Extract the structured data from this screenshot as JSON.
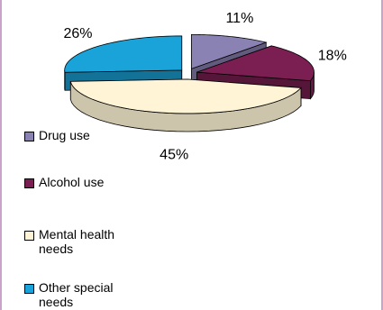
{
  "chart_data": {
    "type": "pie",
    "categories": [
      "Drug use",
      "Alcohol use",
      "Mental health needs",
      "Other special needs"
    ],
    "values": [
      11,
      18,
      45,
      26
    ],
    "value_labels": [
      "11%",
      "18%",
      "45%",
      "26%"
    ],
    "title": "",
    "legend_placement": "bottom-left",
    "colors": {
      "Drug use": "#8b82b4",
      "Alcohol use": "#7b1f52",
      "Mental health needs": "#fff5d6",
      "Other special needs": "#1aa3d9"
    },
    "three_d": true,
    "exploded": true
  },
  "legend": {
    "items": [
      {
        "label": "Drug use",
        "color": "#8b82b4"
      },
      {
        "label": "Alcohol use",
        "color": "#7b1f52"
      },
      {
        "label": "Mental health needs",
        "color": "#fff5d6"
      },
      {
        "label": "Other special needs",
        "color": "#1aa3d9"
      }
    ]
  }
}
